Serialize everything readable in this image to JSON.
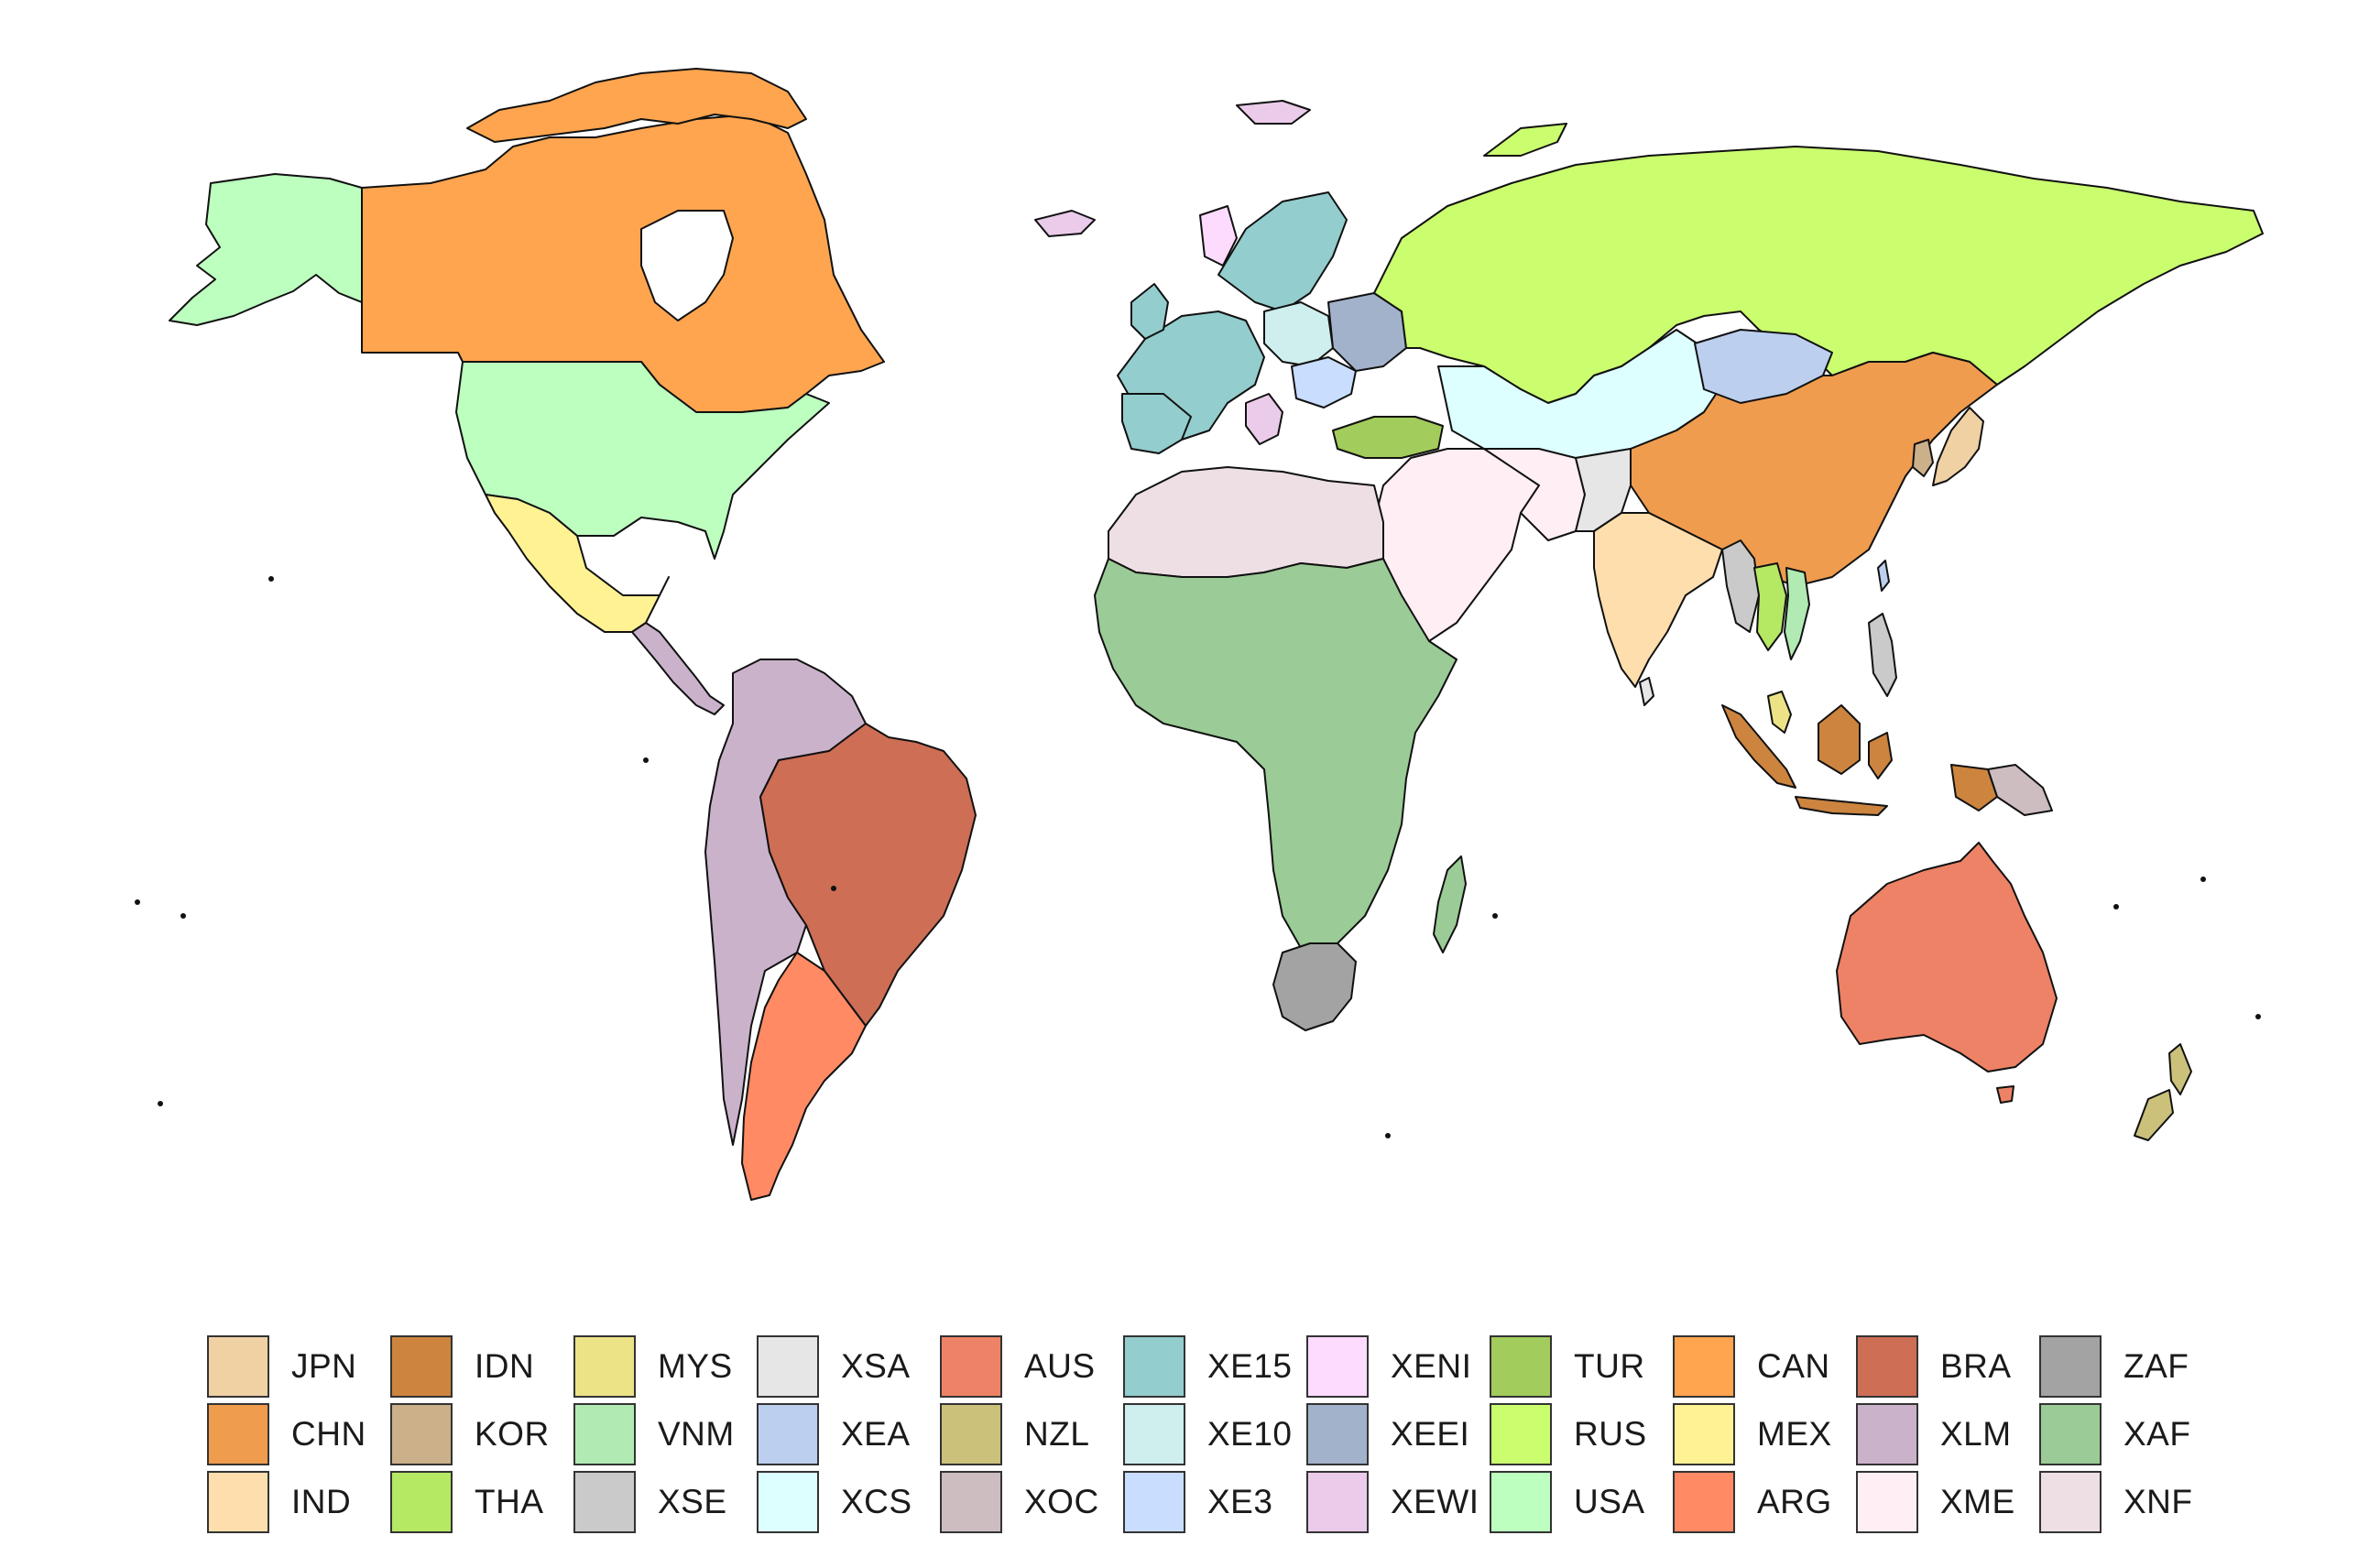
{
  "map": {
    "regions": [
      {
        "code": "JPN",
        "color": "#EFD1A4"
      },
      {
        "code": "CHN",
        "color": "#EF9C4F"
      },
      {
        "code": "IND",
        "color": "#FDDEAC"
      },
      {
        "code": "IDN",
        "color": "#CC843F"
      },
      {
        "code": "KOR",
        "color": "#CBB08A"
      },
      {
        "code": "THA",
        "color": "#B5E863"
      },
      {
        "code": "MYS",
        "color": "#ECE387"
      },
      {
        "code": "VNM",
        "color": "#B1EBB3"
      },
      {
        "code": "XSE",
        "color": "#CACACA"
      },
      {
        "code": "XSA",
        "color": "#E6E6E6"
      },
      {
        "code": "XEA",
        "color": "#BCCFEE"
      },
      {
        "code": "XCS",
        "color": "#DDFFFF"
      },
      {
        "code": "AUS",
        "color": "#EE8266"
      },
      {
        "code": "NZL",
        "color": "#CBC17B"
      },
      {
        "code": "XOC",
        "color": "#CDBDC0"
      },
      {
        "code": "XE15",
        "color": "#93CDCD"
      },
      {
        "code": "XE10",
        "color": "#CFEEEE"
      },
      {
        "code": "XE3",
        "color": "#C9DDFF"
      },
      {
        "code": "XENI",
        "color": "#FDDBFF"
      },
      {
        "code": "XEEI",
        "color": "#A3B2CB"
      },
      {
        "code": "XEWI",
        "color": "#EBCBEA"
      },
      {
        "code": "TUR",
        "color": "#A2CC5B"
      },
      {
        "code": "RUS",
        "color": "#CBFE6F"
      },
      {
        "code": "USA",
        "color": "#BCFFBF"
      },
      {
        "code": "CAN",
        "color": "#FFA54F"
      },
      {
        "code": "MEX",
        "color": "#FFF293"
      },
      {
        "code": "ARG",
        "color": "#FF8A63"
      },
      {
        "code": "BRA",
        "color": "#CD6E55"
      },
      {
        "code": "XLM",
        "color": "#CBB2CB"
      },
      {
        "code": "XME",
        "color": "#FFEEF3"
      },
      {
        "code": "ZAF",
        "color": "#A3A3A3"
      },
      {
        "code": "XAF",
        "color": "#9BCB96"
      },
      {
        "code": "XNF",
        "color": "#EDDFE4"
      }
    ]
  }
}
